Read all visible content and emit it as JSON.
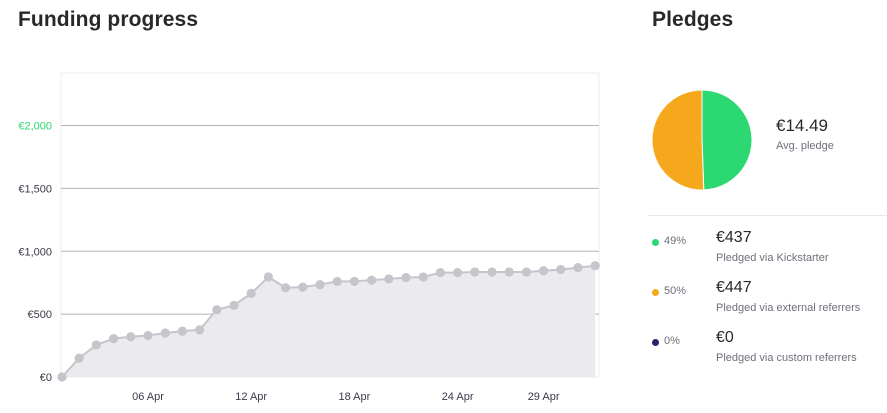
{
  "funding": {
    "title": "Funding progress"
  },
  "pledges": {
    "title": "Pledges",
    "avg_value": "€14.49",
    "avg_label": "Avg. pledge",
    "legend": [
      {
        "pct": "49%",
        "amount": "€437",
        "label": "Pledged via Kickstarter",
        "color": "#2bd872"
      },
      {
        "pct": "50%",
        "amount": "€447",
        "label": "Pledged via external referrers",
        "color": "#f5a81c"
      },
      {
        "pct": "0%",
        "amount": "€0",
        "label": "Pledged via custom referrers",
        "color": "#2b2469"
      }
    ]
  },
  "chart_data": [
    {
      "type": "area",
      "x_start": "2023-04-01",
      "x_tick_labels": [
        "06 Apr",
        "12 Apr",
        "18 Apr",
        "24 Apr",
        "29 Apr"
      ],
      "x_tick_dates": [
        "2023-04-06",
        "2023-04-12",
        "2023-04-18",
        "2023-04-24",
        "2023-04-29"
      ],
      "y_tick_labels": [
        "€0",
        "€500",
        "€1,000",
        "€1,500",
        "€2,000"
      ],
      "y_tick_values": [
        0,
        500,
        1000,
        1500,
        2000
      ],
      "goal": 2000,
      "ylim": [
        0,
        2400
      ],
      "grid": true,
      "series": [
        {
          "x": [
            "2023-04-01",
            "2023-04-02",
            "2023-04-03",
            "2023-04-04",
            "2023-04-05",
            "2023-04-06",
            "2023-04-07",
            "2023-04-08",
            "2023-04-09",
            "2023-04-10",
            "2023-04-11",
            "2023-04-12",
            "2023-04-13",
            "2023-04-14",
            "2023-04-15",
            "2023-04-16",
            "2023-04-17",
            "2023-04-18",
            "2023-04-19",
            "2023-04-20",
            "2023-04-21",
            "2023-04-22",
            "2023-04-23",
            "2023-04-24",
            "2023-04-25",
            "2023-04-26",
            "2023-04-27",
            "2023-04-28",
            "2023-04-29",
            "2023-04-30",
            "2023-05-01",
            "2023-05-02"
          ],
          "values": [
            0,
            150,
            255,
            305,
            320,
            330,
            350,
            365,
            375,
            535,
            570,
            665,
            795,
            710,
            715,
            735,
            760,
            760,
            770,
            780,
            790,
            795,
            830,
            830,
            835,
            835,
            835,
            835,
            845,
            855,
            870,
            885
          ],
          "color": "#c5c5cb"
        }
      ]
    },
    {
      "type": "pie",
      "labels": [
        "Pledged via Kickstarter",
        "Pledged via external referrers",
        "Pledged via custom referrers"
      ],
      "values": [
        437,
        447,
        0
      ],
      "colors": [
        "#2bd872",
        "#f5a81c",
        "#2b2469"
      ]
    }
  ]
}
